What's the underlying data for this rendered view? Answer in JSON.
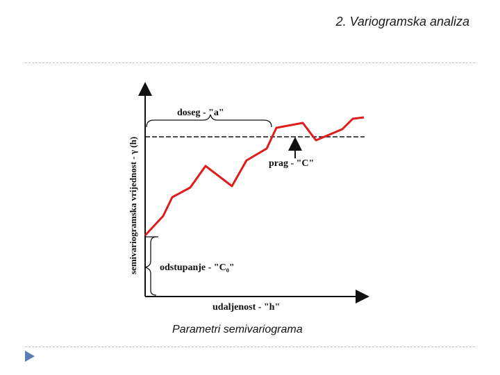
{
  "header": {
    "title": "2. Variogramska analiza"
  },
  "diagram": {
    "y_axis_label": "semivariogramska vrijednost - γ (h)",
    "x_axis_label": "udaljenost - \"h\"",
    "range_label": "doseg - \"a\"",
    "sill_label": "prag - \"C\"",
    "nugget_label": "odstupanje - \"C₀\"",
    "colors": {
      "curve": "#e01b1b",
      "axes": "#111111",
      "divider": "#b7bfc8",
      "bullet": "#5a7db4"
    }
  },
  "caption": "Parametri semivariograma"
}
